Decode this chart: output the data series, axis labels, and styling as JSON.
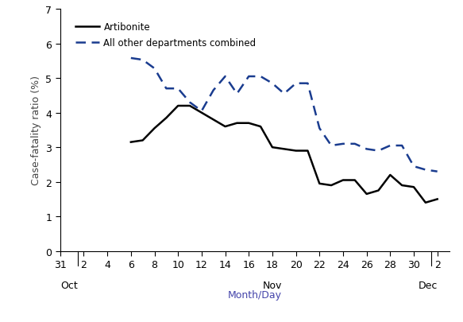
{
  "ylabel": "Case-fatality ratio (%)",
  "xlabel": "Month/Day",
  "xlabel_color": "#4444aa",
  "ylim": [
    0,
    7
  ],
  "yticks": [
    0,
    1,
    2,
    3,
    4,
    5,
    6,
    7
  ],
  "artibonite_label": "Artibonite",
  "other_label": "All other departments combined",
  "artibonite_color": "#000000",
  "other_color": "#1a3c8f",
  "xlim": [
    31,
    64
  ],
  "xtick_positions": [
    31,
    33,
    35,
    37,
    39,
    41,
    43,
    45,
    47,
    49,
    51,
    53,
    55,
    57,
    59,
    61,
    63
  ],
  "xtick_labels": [
    "31",
    "2",
    "4",
    "6",
    "8",
    "10",
    "12",
    "14",
    "16",
    "18",
    "20",
    "22",
    "24",
    "26",
    "28",
    "30",
    "2"
  ],
  "month_labels": [
    {
      "text": "Oct",
      "x": 31
    },
    {
      "text": "Nov",
      "x": 49
    },
    {
      "text": "Dec",
      "x": 63
    }
  ],
  "sep_lines": [
    32.5,
    62.5
  ],
  "artibonite_x": [
    37,
    38,
    39,
    40,
    41,
    42,
    43,
    44,
    45,
    46,
    47,
    48,
    49,
    50,
    51,
    52,
    53,
    54,
    55,
    56,
    57,
    58,
    59,
    60,
    61,
    62,
    63
  ],
  "artibonite_y": [
    3.15,
    3.2,
    3.55,
    3.85,
    4.2,
    4.2,
    4.0,
    3.8,
    3.6,
    3.7,
    3.7,
    3.6,
    3.0,
    2.95,
    2.9,
    2.9,
    1.95,
    1.9,
    2.05,
    2.05,
    1.65,
    1.75,
    2.2,
    1.9,
    1.85,
    1.4,
    1.5
  ],
  "other_x": [
    37,
    38,
    39,
    40,
    41,
    42,
    43,
    44,
    45,
    46,
    47,
    48,
    49,
    50,
    51,
    52,
    53,
    54,
    55,
    56,
    57,
    58,
    59,
    60,
    61,
    62,
    63
  ],
  "other_y": [
    5.58,
    5.53,
    5.28,
    4.7,
    4.7,
    4.3,
    4.05,
    4.65,
    5.05,
    4.55,
    5.05,
    5.05,
    4.85,
    4.55,
    4.85,
    4.85,
    3.55,
    3.05,
    3.1,
    3.1,
    2.95,
    2.9,
    3.05,
    3.05,
    2.45,
    2.35,
    2.3
  ]
}
